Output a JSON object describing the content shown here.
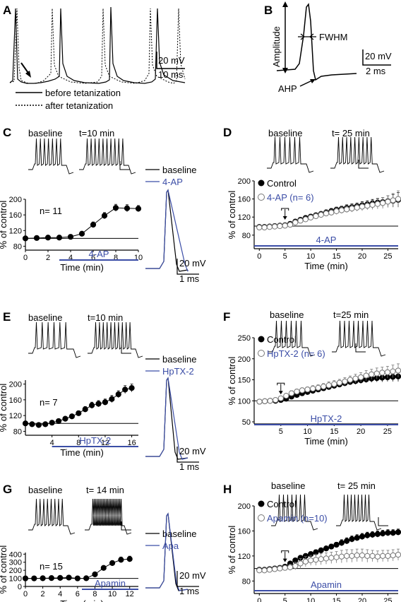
{
  "colors": {
    "black": "#000000",
    "blue": "#3b4da6",
    "hollow": "#7a7a7a",
    "error_bar": "#555555"
  },
  "panel_A": {
    "letter": "A",
    "scale_v": "20 mV",
    "scale_h": "10 ms",
    "legend_solid": "before tetanization",
    "legend_dotted": "after tetanization"
  },
  "panel_B": {
    "letter": "B",
    "amplitude": "Amplitude",
    "fwhm": "FWHM",
    "ahp": "AHP",
    "scale_v": "20 mV",
    "scale_h": "2 ms"
  },
  "panel_C": {
    "letter": "C",
    "trace_label_1": "baseline",
    "trace_label_2": "t=10 min",
    "legend_1": "baseline",
    "legend_2": "4-AP",
    "n_label": "n= 11",
    "drug_label": "4-AP",
    "scale_v": "20 mV",
    "scale_h": "1 ms"
  },
  "panel_D": {
    "letter": "D",
    "trace_label_1": "baseline",
    "trace_label_2": "t= 25 min",
    "legend_1": "Control",
    "legend_2": "4-AP (n= 6)",
    "drug_label": "4-AP"
  },
  "panel_E": {
    "letter": "E",
    "trace_label_1": "baseline",
    "trace_label_2": "t=10 min",
    "legend_1": "baseline",
    "legend_2": "HpTX-2",
    "n_label": "n= 7",
    "drug_label": "HpTX-2",
    "scale_v": "20 mV",
    "scale_h": "1 ms"
  },
  "panel_F": {
    "letter": "F",
    "trace_label_1": "baseline",
    "trace_label_2": "t=25 min",
    "legend_1": "Control",
    "legend_2": "HpTX-2 (n= 6)",
    "drug_label": "HpTX-2"
  },
  "panel_G": {
    "letter": "G",
    "trace_label_1": "baseline",
    "trace_label_2": "t= 14 min",
    "legend_1": "baseline",
    "legend_2": "Apa",
    "n_label": "n= 15",
    "drug_label": "Apamin",
    "scale_v": "20 mV",
    "scale_h": "1 ms"
  },
  "panel_H": {
    "letter": "H",
    "trace_label_1": "baseline",
    "trace_label_2": "t= 25 min",
    "legend_1": "Control",
    "legend_2": "Apamin (n=10)",
    "drug_label": "Apamin"
  },
  "chart_data": [
    {
      "id": "C",
      "type": "scatter",
      "xlabel": "Time (min)",
      "ylabel": "% of control",
      "xlim": [
        0,
        10
      ],
      "ylim": [
        70,
        200
      ],
      "xticks": [
        0,
        2,
        4,
        6,
        8,
        10
      ],
      "yticks": [
        80,
        120,
        160,
        200
      ],
      "reference_y": 100,
      "drug_start": 3,
      "drug_end": 10,
      "series": [
        {
          "style": "filled",
          "x": [
            0,
            1,
            2,
            3,
            4,
            5,
            6,
            7,
            8,
            9,
            10
          ],
          "y": [
            100,
            101,
            102,
            102,
            104,
            112,
            135,
            158,
            178,
            177,
            176
          ],
          "err": [
            3,
            3,
            3,
            3,
            4,
            5,
            7,
            8,
            9,
            9,
            8
          ]
        }
      ]
    },
    {
      "id": "D",
      "type": "scatter",
      "xlabel": "Time (min)",
      "ylabel": "% of control",
      "xlim": [
        -1,
        27
      ],
      "ylim": [
        50,
        200
      ],
      "xticks": [
        0,
        5,
        10,
        15,
        20,
        25
      ],
      "yticks": [
        80,
        120,
        160,
        200
      ],
      "reference_y": 100,
      "drug_start": -1,
      "drug_end": 27,
      "arrow_x": 5,
      "series": [
        {
          "name": "Control",
          "style": "filled",
          "x": [
            0,
            1,
            2,
            3,
            4,
            5,
            6,
            7,
            8,
            9,
            10,
            11,
            12,
            13,
            14,
            15,
            16,
            17,
            18,
            19,
            20,
            21,
            22,
            23,
            24,
            25,
            26,
            27
          ],
          "y": [
            98,
            98,
            99,
            100,
            101,
            102,
            105,
            110,
            114,
            118,
            121,
            124,
            127,
            130,
            133,
            136,
            138,
            140,
            142,
            144,
            146,
            148,
            150,
            152,
            153,
            155,
            156,
            158
          ],
          "err": [
            3,
            3,
            3,
            3,
            3,
            4,
            4,
            5,
            5,
            5,
            5,
            5,
            5,
            6,
            6,
            6,
            6,
            7,
            7,
            7,
            8,
            8,
            9,
            9,
            10,
            12,
            14,
            16
          ]
        },
        {
          "name": "4-AP (n= 6)",
          "style": "hollow",
          "x": [
            0,
            1,
            2,
            3,
            4,
            5,
            6,
            7,
            8,
            9,
            10,
            11,
            12,
            13,
            14,
            15,
            16,
            17,
            18,
            19,
            20,
            21,
            22,
            23,
            24,
            25,
            26,
            27
          ],
          "y": [
            97,
            97,
            98,
            99,
            100,
            101,
            103,
            108,
            112,
            115,
            119,
            122,
            125,
            128,
            130,
            133,
            135,
            137,
            139,
            141,
            143,
            145,
            147,
            149,
            151,
            154,
            157,
            160
          ],
          "err": [
            3,
            3,
            3,
            3,
            3,
            4,
            4,
            5,
            5,
            5,
            5,
            6,
            6,
            6,
            6,
            7,
            7,
            7,
            8,
            8,
            9,
            9,
            10,
            11,
            12,
            13,
            15,
            18
          ]
        }
      ]
    },
    {
      "id": "E",
      "type": "scatter",
      "xlabel": "Time (min)",
      "ylabel": "% of control",
      "xlim": [
        0,
        17
      ],
      "ylim": [
        70,
        210
      ],
      "xticks": [
        4,
        8,
        12,
        16
      ],
      "yticks": [
        80,
        120,
        160,
        200
      ],
      "reference_y": 100,
      "drug_start": 4,
      "drug_end": 17,
      "series": [
        {
          "style": "filled",
          "x": [
            0,
            1,
            2,
            3,
            4,
            5,
            6,
            7,
            8,
            9,
            10,
            11,
            12,
            13,
            14,
            15,
            16
          ],
          "y": [
            100,
            98,
            96,
            98,
            102,
            106,
            112,
            118,
            126,
            136,
            146,
            150,
            154,
            162,
            174,
            186,
            190
          ],
          "err": [
            3,
            3,
            3,
            3,
            4,
            4,
            5,
            5,
            6,
            7,
            8,
            8,
            8,
            9,
            9,
            10,
            10
          ]
        }
      ]
    },
    {
      "id": "F",
      "type": "scatter",
      "xlabel": "Time (min)",
      "ylabel": "% of control",
      "xlim": [
        0,
        27
      ],
      "ylim": [
        45,
        250
      ],
      "xticks": [
        5,
        10,
        15,
        20,
        25
      ],
      "yticks": [
        50,
        100,
        150,
        200,
        250
      ],
      "reference_y": 100,
      "drug_start": 0,
      "drug_end": 27,
      "arrow_x": 5,
      "series": [
        {
          "name": "Control",
          "style": "filled",
          "x": [
            1,
            2,
            3,
            4,
            5,
            6,
            7,
            8,
            9,
            10,
            11,
            12,
            13,
            14,
            15,
            16,
            17,
            18,
            19,
            20,
            21,
            22,
            23,
            24,
            25,
            26,
            27
          ],
          "y": [
            98,
            99,
            100,
            100,
            102,
            105,
            110,
            114,
            118,
            121,
            124,
            127,
            130,
            133,
            136,
            139,
            142,
            145,
            147,
            149,
            151,
            153,
            154,
            155,
            156,
            157,
            158
          ],
          "err": [
            3,
            3,
            3,
            3,
            4,
            4,
            4,
            5,
            5,
            5,
            5,
            6,
            6,
            6,
            6,
            7,
            7,
            7,
            8,
            8,
            8,
            9,
            9,
            10,
            10,
            11,
            12
          ]
        },
        {
          "name": "HpTX-2 (n= 6)",
          "style": "hollow",
          "x": [
            1,
            2,
            3,
            4,
            5,
            6,
            7,
            8,
            9,
            10,
            11,
            12,
            13,
            14,
            15,
            16,
            17,
            18,
            19,
            20,
            21,
            22,
            23,
            24,
            25,
            26,
            27
          ],
          "y": [
            98,
            99,
            100,
            102,
            106,
            112,
            118,
            122,
            125,
            127,
            129,
            131,
            134,
            137,
            140,
            143,
            146,
            150,
            153,
            156,
            160,
            163,
            165,
            167,
            168,
            170,
            172
          ],
          "err": [
            3,
            3,
            3,
            4,
            5,
            5,
            6,
            6,
            6,
            6,
            7,
            7,
            7,
            8,
            8,
            8,
            9,
            9,
            10,
            11,
            12,
            12,
            13,
            13,
            14,
            15,
            16
          ]
        }
      ]
    },
    {
      "id": "G",
      "type": "scatter",
      "xlabel": "Time (min)",
      "ylabel": "% of control",
      "xlim": [
        0,
        13
      ],
      "ylim": [
        0,
        420
      ],
      "xticks": [
        0,
        2,
        4,
        6,
        8,
        10,
        12
      ],
      "yticks": [
        0,
        100,
        200,
        300,
        400
      ],
      "reference_y": 100,
      "drug_start": 6.5,
      "drug_end": 13,
      "series": [
        {
          "style": "filled",
          "x": [
            0,
            1,
            2,
            3,
            4,
            5,
            6,
            7,
            8,
            9,
            10,
            11,
            12
          ],
          "y": [
            100,
            100,
            102,
            104,
            106,
            110,
            100,
            102,
            150,
            230,
            290,
            330,
            340
          ],
          "err": [
            8,
            8,
            8,
            8,
            10,
            10,
            10,
            12,
            18,
            25,
            30,
            35,
            35
          ]
        }
      ]
    },
    {
      "id": "H",
      "type": "scatter",
      "xlabel": "Time (min)",
      "ylabel": "% of control",
      "xlim": [
        -1,
        27
      ],
      "ylim": [
        60,
        200
      ],
      "xticks": [
        0,
        5,
        10,
        15,
        20,
        25
      ],
      "yticks": [
        80,
        120,
        160,
        200
      ],
      "reference_y": 100,
      "drug_start": -1,
      "drug_end": 27,
      "arrow_x": 5,
      "series": [
        {
          "name": "Control",
          "style": "filled",
          "x": [
            0,
            1,
            2,
            3,
            4,
            5,
            6,
            7,
            8,
            9,
            10,
            11,
            12,
            13,
            14,
            15,
            16,
            17,
            18,
            19,
            20,
            21,
            22,
            23,
            24,
            25,
            26,
            27
          ],
          "y": [
            98,
            98,
            99,
            100,
            101,
            103,
            108,
            113,
            117,
            120,
            123,
            126,
            129,
            132,
            135,
            138,
            141,
            144,
            147,
            149,
            151,
            153,
            154,
            155,
            156,
            157,
            157,
            158
          ],
          "err": [
            2,
            2,
            2,
            2,
            2,
            3,
            3,
            3,
            4,
            4,
            4,
            4,
            4,
            4,
            4,
            4,
            5,
            5,
            5,
            5,
            5,
            5,
            5,
            5,
            5,
            5,
            5,
            5
          ]
        },
        {
          "name": "Apamin (n=10)",
          "style": "hollow",
          "x": [
            0,
            1,
            2,
            3,
            4,
            5,
            6,
            7,
            8,
            9,
            10,
            11,
            12,
            13,
            14,
            15,
            16,
            17,
            18,
            19,
            20,
            21,
            22,
            23,
            24,
            25,
            26,
            27
          ],
          "y": [
            97,
            97,
            98,
            99,
            100,
            101,
            102,
            104,
            108,
            111,
            113,
            114,
            115,
            116,
            117,
            118,
            119,
            120,
            120,
            121,
            121,
            120,
            120,
            119,
            120,
            120,
            121,
            122
          ],
          "err": [
            3,
            3,
            3,
            3,
            3,
            4,
            5,
            6,
            8,
            8,
            8,
            9,
            9,
            9,
            9,
            9,
            10,
            10,
            10,
            10,
            10,
            10,
            9,
            9,
            9,
            9,
            9,
            9
          ]
        }
      ]
    }
  ]
}
